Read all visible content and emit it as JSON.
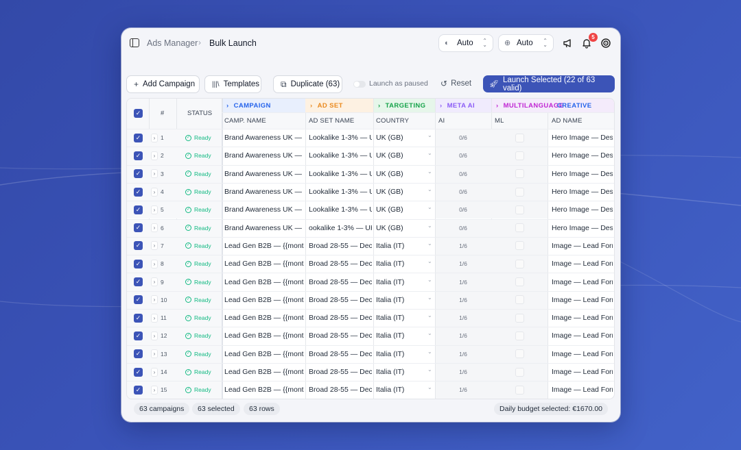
{
  "breadcrumb": {
    "root": "Ads Manager",
    "current": "Bulk Launch"
  },
  "header": {
    "mode_select_1": "Auto",
    "mode_select_2": "Auto",
    "notification_count": "5"
  },
  "toolbar": {
    "add_campaign": "Add Campaign",
    "templates": "Templates",
    "duplicate": "Duplicate (63)",
    "launch_paused": "Launch as paused",
    "reset": "Reset",
    "launch_selected": "Launch Selected (22 of 63 valid)"
  },
  "groups": {
    "campaign": "CAMPAIGN",
    "ad_set": "AD SET",
    "targeting": "TARGETING",
    "meta_ai": "META AI",
    "multilanguage": "MULTILANGUAGE",
    "creative": "CREATIVE"
  },
  "columns": {
    "num": "#",
    "status": "STATUS",
    "camp_name": "CAMP. NAME",
    "ad_set_name": "AD SET NAME",
    "country": "COUNTRY",
    "ai": "AI",
    "ml": "ML",
    "ad_name": "AD NAME"
  },
  "rows": [
    {
      "num": "1",
      "status": "Ready",
      "campaign": "Brand Awareness UK — {",
      "adset": "Lookalike 1-3% — U",
      "country": "UK (GB)",
      "ai": "0/6",
      "ad": "Hero Image — Desk"
    },
    {
      "num": "2",
      "status": "Ready",
      "campaign": "Brand Awareness UK — {",
      "adset": "Lookalike 1-3% — U",
      "country": "UK (GB)",
      "ai": "0/6",
      "ad": "Hero Image — Desk"
    },
    {
      "num": "3",
      "status": "Ready",
      "campaign": "Brand Awareness UK — {",
      "adset": "Lookalike 1-3% — U",
      "country": "UK (GB)",
      "ai": "0/6",
      "ad": "Hero Image — Desk"
    },
    {
      "num": "4",
      "status": "Ready",
      "campaign": "Brand Awareness UK — {",
      "adset": "Lookalike 1-3% — U",
      "country": "UK (GB)",
      "ai": "0/6",
      "ad": "Hero Image — Desk"
    },
    {
      "num": "5",
      "status": "Ready",
      "campaign": "Brand Awareness UK — {",
      "adset": "Lookalike 1-3% — U",
      "country": "UK (GB)",
      "ai": "0/6",
      "ad": "Hero Image — Desk"
    },
    {
      "num": "6",
      "status": "Ready",
      "campaign": "Brand Awareness UK — {",
      "adset": "ookalike 1-3% — UK",
      "country": "UK (GB)",
      "ai": "0/6",
      "ad": "Hero Image — Desk"
    },
    {
      "num": "7",
      "status": "Ready",
      "campaign": "Lead Gen B2B — {{montl",
      "adset": "Broad 28-55 — Dec",
      "country": "Italia (IT)",
      "ai": "1/6",
      "ad": "Image — Lead Form"
    },
    {
      "num": "8",
      "status": "Ready",
      "campaign": "Lead Gen B2B — {{montl",
      "adset": "Broad 28-55 — Dec",
      "country": "Italia (IT)",
      "ai": "1/6",
      "ad": "Image — Lead Form"
    },
    {
      "num": "9",
      "status": "Ready",
      "campaign": "Lead Gen B2B — {{montl",
      "adset": "Broad 28-55 — Dec",
      "country": "Italia (IT)",
      "ai": "1/6",
      "ad": "Image — Lead Form"
    },
    {
      "num": "10",
      "status": "Ready",
      "campaign": "Lead Gen B2B — {{montl",
      "adset": "Broad 28-55 — Dec",
      "country": "Italia (IT)",
      "ai": "1/6",
      "ad": "Image — Lead Form"
    },
    {
      "num": "11",
      "status": "Ready",
      "campaign": "Lead Gen B2B — {{montl",
      "adset": "Broad 28-55 — Dec",
      "country": "Italia (IT)",
      "ai": "1/6",
      "ad": "Image — Lead Form"
    },
    {
      "num": "12",
      "status": "Ready",
      "campaign": "Lead Gen B2B — {{montl",
      "adset": "Broad 28-55 — Dec",
      "country": "Italia (IT)",
      "ai": "1/6",
      "ad": "Image — Lead Form"
    },
    {
      "num": "13",
      "status": "Ready",
      "campaign": "Lead Gen B2B — {{montl",
      "adset": "Broad 28-55 — Dec",
      "country": "Italia (IT)",
      "ai": "1/6",
      "ad": "Image — Lead Form"
    },
    {
      "num": "14",
      "status": "Ready",
      "campaign": "Lead Gen B2B — {{montl",
      "adset": "Broad 28-55 — Dec",
      "country": "Italia (IT)",
      "ai": "1/6",
      "ad": "Image — Lead Form"
    },
    {
      "num": "15",
      "status": "Ready",
      "campaign": "Lead Gen B2B — {{montl",
      "adset": "Broad 28-55 — Dec",
      "country": "Italia (IT)",
      "ai": "1/6",
      "ad": "Image — Lead Form"
    }
  ],
  "footer": {
    "campaigns": "63 campaigns",
    "selected": "63 selected",
    "rows": "63 rows",
    "budget": "Daily budget selected: €1670.00"
  },
  "colors": {
    "accent": "#3c54b7",
    "ready": "#10b981",
    "campaign_group": "#2563eb",
    "adset_group": "#ea8a1f",
    "targeting_group": "#16a34a",
    "meta_ai_group": "#8b5cf6",
    "multilanguage_group": "#c026d3"
  },
  "icons": [
    "sidebar-toggle-icon",
    "chevron-right-icon",
    "auto-theme-icon",
    "globe-icon",
    "chevron-updown-icon",
    "megaphone-icon",
    "bell-icon",
    "target-icon",
    "plus-icon",
    "library-icon",
    "duplicate-icon",
    "reset-icon",
    "rocket-icon",
    "check-icon",
    "check-circle-icon",
    "chevron-down-icon"
  ]
}
